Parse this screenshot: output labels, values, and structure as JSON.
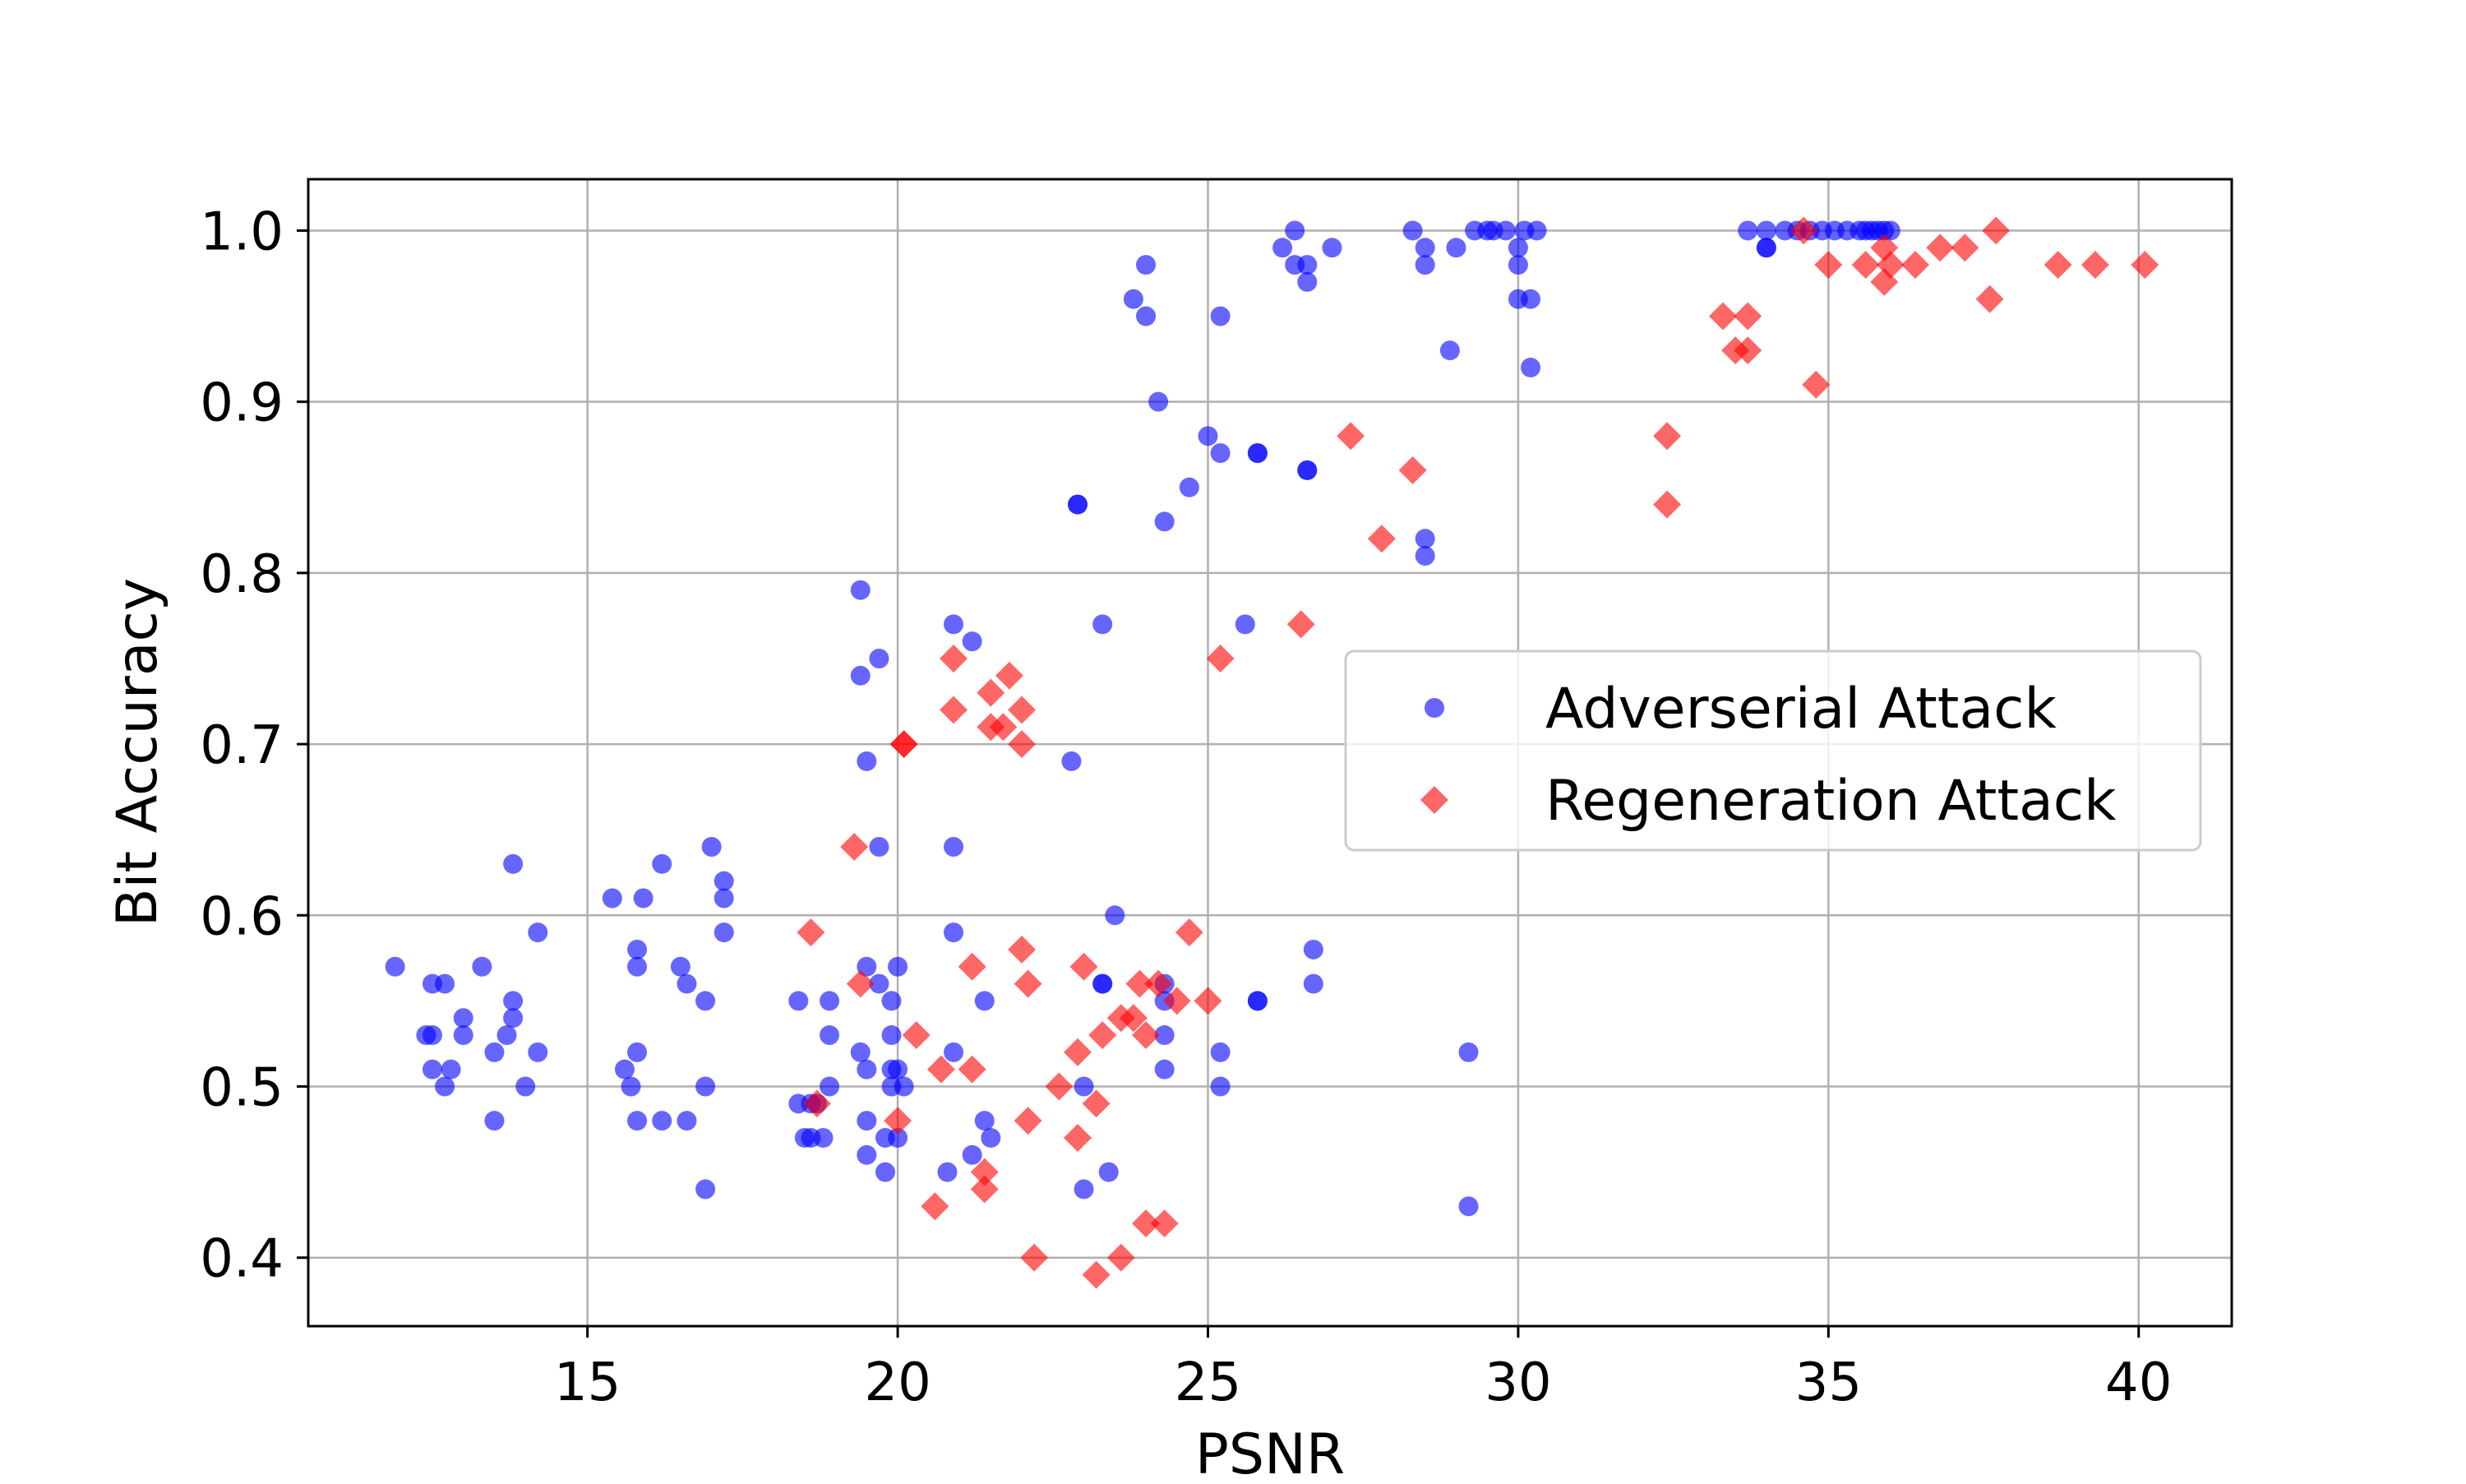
{
  "chart_data": {
    "type": "scatter",
    "xlabel": "PSNR",
    "ylabel": "Bit Accuracy",
    "xlim": [
      10.5,
      41.5
    ],
    "ylim": [
      0.36,
      1.03
    ],
    "xticks": [
      15,
      20,
      25,
      30,
      35,
      40
    ],
    "yticks": [
      0.4,
      0.5,
      0.6,
      0.7,
      0.8,
      0.9,
      1.0
    ],
    "xtick_labels": [
      "15",
      "20",
      "25",
      "30",
      "35",
      "40"
    ],
    "ytick_labels": [
      "0.4",
      "0.5",
      "0.6",
      "0.7",
      "0.8",
      "0.9",
      "1.0"
    ],
    "grid": true,
    "legend_position": "center-right",
    "series": [
      {
        "name": "Adverserial Attack",
        "marker": "circle",
        "color": "#0000ff",
        "alpha": 0.6,
        "points": [
          [
            11.9,
            0.57
          ],
          [
            12.4,
            0.53
          ],
          [
            12.5,
            0.53
          ],
          [
            12.5,
            0.51
          ],
          [
            12.5,
            0.56
          ],
          [
            12.7,
            0.5
          ],
          [
            12.7,
            0.56
          ],
          [
            12.8,
            0.51
          ],
          [
            13.0,
            0.54
          ],
          [
            13.0,
            0.53
          ],
          [
            13.3,
            0.57
          ],
          [
            13.5,
            0.48
          ],
          [
            13.5,
            0.52
          ],
          [
            13.7,
            0.53
          ],
          [
            13.8,
            0.63
          ],
          [
            13.8,
            0.55
          ],
          [
            13.8,
            0.54
          ],
          [
            14.0,
            0.5
          ],
          [
            14.2,
            0.59
          ],
          [
            14.2,
            0.52
          ],
          [
            15.4,
            0.61
          ],
          [
            15.6,
            0.51
          ],
          [
            15.7,
            0.5
          ],
          [
            15.8,
            0.52
          ],
          [
            15.8,
            0.48
          ],
          [
            15.8,
            0.58
          ],
          [
            15.8,
            0.57
          ],
          [
            15.9,
            0.61
          ],
          [
            16.2,
            0.63
          ],
          [
            16.2,
            0.48
          ],
          [
            16.5,
            0.57
          ],
          [
            16.6,
            0.48
          ],
          [
            16.6,
            0.56
          ],
          [
            16.9,
            0.55
          ],
          [
            16.9,
            0.5
          ],
          [
            16.9,
            0.44
          ],
          [
            17.0,
            0.64
          ],
          [
            17.2,
            0.62
          ],
          [
            17.2,
            0.61
          ],
          [
            17.2,
            0.59
          ],
          [
            18.4,
            0.55
          ],
          [
            18.4,
            0.49
          ],
          [
            18.5,
            0.47
          ],
          [
            18.6,
            0.47
          ],
          [
            18.6,
            0.49
          ],
          [
            18.7,
            0.49
          ],
          [
            18.8,
            0.47
          ],
          [
            18.9,
            0.53
          ],
          [
            18.9,
            0.55
          ],
          [
            18.9,
            0.5
          ],
          [
            19.4,
            0.79
          ],
          [
            19.4,
            0.74
          ],
          [
            19.4,
            0.52
          ],
          [
            19.5,
            0.69
          ],
          [
            19.5,
            0.57
          ],
          [
            19.5,
            0.51
          ],
          [
            19.5,
            0.48
          ],
          [
            19.5,
            0.46
          ],
          [
            19.7,
            0.75
          ],
          [
            19.7,
            0.64
          ],
          [
            19.7,
            0.56
          ],
          [
            19.8,
            0.45
          ],
          [
            19.8,
            0.47
          ],
          [
            19.9,
            0.55
          ],
          [
            19.9,
            0.53
          ],
          [
            19.9,
            0.5
          ],
          [
            19.9,
            0.51
          ],
          [
            20.0,
            0.57
          ],
          [
            20.0,
            0.47
          ],
          [
            20.0,
            0.51
          ],
          [
            20.1,
            0.5
          ],
          [
            20.8,
            0.45
          ],
          [
            20.9,
            0.77
          ],
          [
            20.9,
            0.64
          ],
          [
            20.9,
            0.59
          ],
          [
            20.9,
            0.52
          ],
          [
            21.2,
            0.76
          ],
          [
            21.2,
            0.46
          ],
          [
            21.4,
            0.55
          ],
          [
            21.4,
            0.48
          ],
          [
            21.5,
            0.47
          ],
          [
            22.8,
            0.69
          ],
          [
            22.9,
            0.84
          ],
          [
            22.9,
            0.84
          ],
          [
            23.0,
            0.5
          ],
          [
            23.0,
            0.44
          ],
          [
            23.3,
            0.77
          ],
          [
            23.3,
            0.56
          ],
          [
            23.3,
            0.56
          ],
          [
            23.4,
            0.45
          ],
          [
            23.5,
            0.6
          ],
          [
            23.8,
            0.96
          ],
          [
            24.0,
            0.98
          ],
          [
            24.0,
            0.95
          ],
          [
            24.2,
            0.9
          ],
          [
            24.3,
            0.83
          ],
          [
            24.3,
            0.56
          ],
          [
            24.3,
            0.55
          ],
          [
            24.3,
            0.53
          ],
          [
            24.3,
            0.51
          ],
          [
            24.7,
            0.85
          ],
          [
            25.0,
            0.88
          ],
          [
            25.2,
            0.87
          ],
          [
            25.2,
            0.95
          ],
          [
            25.2,
            0.52
          ],
          [
            25.2,
            0.5
          ],
          [
            25.6,
            0.77
          ],
          [
            25.8,
            0.87
          ],
          [
            25.8,
            0.87
          ],
          [
            25.8,
            0.55
          ],
          [
            25.8,
            0.55
          ],
          [
            26.2,
            0.99
          ],
          [
            26.4,
            1.0
          ],
          [
            26.4,
            0.98
          ],
          [
            26.6,
            0.98
          ],
          [
            26.6,
            0.97
          ],
          [
            26.6,
            0.86
          ],
          [
            26.6,
            0.86
          ],
          [
            26.7,
            0.58
          ],
          [
            26.7,
            0.56
          ],
          [
            27.0,
            0.99
          ],
          [
            28.3,
            1.0
          ],
          [
            28.5,
            0.99
          ],
          [
            28.5,
            0.98
          ],
          [
            28.5,
            0.82
          ],
          [
            28.5,
            0.81
          ],
          [
            28.9,
            0.93
          ],
          [
            29.0,
            0.99
          ],
          [
            29.2,
            0.52
          ],
          [
            29.2,
            0.43
          ],
          [
            29.3,
            1.0
          ],
          [
            29.5,
            1.0
          ],
          [
            29.6,
            1.0
          ],
          [
            29.8,
            1.0
          ],
          [
            30.0,
            0.99
          ],
          [
            30.0,
            0.98
          ],
          [
            30.0,
            0.96
          ],
          [
            30.1,
            1.0
          ],
          [
            30.2,
            0.96
          ],
          [
            30.2,
            0.92
          ],
          [
            30.3,
            1.0
          ],
          [
            33.7,
            1.0
          ],
          [
            34.0,
            1.0
          ],
          [
            34.0,
            0.99
          ],
          [
            34.0,
            0.99
          ],
          [
            34.3,
            1.0
          ],
          [
            34.5,
            1.0
          ],
          [
            34.7,
            1.0
          ],
          [
            34.9,
            1.0
          ],
          [
            35.1,
            1.0
          ],
          [
            35.3,
            1.0
          ],
          [
            35.5,
            1.0
          ],
          [
            35.6,
            1.0
          ],
          [
            35.7,
            1.0
          ],
          [
            35.8,
            1.0
          ],
          [
            35.9,
            1.0
          ],
          [
            36.0,
            1.0
          ]
        ]
      },
      {
        "name": "Regeneration Attack",
        "marker": "diamond",
        "color": "#ff0000",
        "alpha": 0.6,
        "points": [
          [
            18.6,
            0.59
          ],
          [
            18.7,
            0.49
          ],
          [
            19.3,
            0.64
          ],
          [
            19.4,
            0.56
          ],
          [
            20.0,
            0.48
          ],
          [
            20.1,
            0.7
          ],
          [
            20.1,
            0.7
          ],
          [
            20.3,
            0.53
          ],
          [
            20.6,
            0.43
          ],
          [
            20.7,
            0.51
          ],
          [
            20.9,
            0.75
          ],
          [
            20.9,
            0.72
          ],
          [
            21.2,
            0.57
          ],
          [
            21.2,
            0.51
          ],
          [
            21.4,
            0.45
          ],
          [
            21.4,
            0.44
          ],
          [
            21.5,
            0.73
          ],
          [
            21.5,
            0.71
          ],
          [
            21.7,
            0.71
          ],
          [
            21.8,
            0.74
          ],
          [
            22.0,
            0.72
          ],
          [
            22.0,
            0.7
          ],
          [
            22.0,
            0.58
          ],
          [
            22.1,
            0.56
          ],
          [
            22.1,
            0.48
          ],
          [
            22.2,
            0.4
          ],
          [
            22.6,
            0.5
          ],
          [
            22.9,
            0.47
          ],
          [
            22.9,
            0.52
          ],
          [
            23.0,
            0.57
          ],
          [
            23.2,
            0.49
          ],
          [
            23.2,
            0.39
          ],
          [
            23.3,
            0.53
          ],
          [
            23.6,
            0.54
          ],
          [
            23.6,
            0.4
          ],
          [
            23.8,
            0.54
          ],
          [
            23.9,
            0.56
          ],
          [
            24.0,
            0.53
          ],
          [
            24.0,
            0.42
          ],
          [
            24.2,
            0.56
          ],
          [
            24.3,
            0.42
          ],
          [
            24.5,
            0.55
          ],
          [
            24.7,
            0.59
          ],
          [
            25.0,
            0.55
          ],
          [
            25.2,
            0.75
          ],
          [
            26.5,
            0.77
          ],
          [
            27.3,
            0.88
          ],
          [
            27.8,
            0.82
          ],
          [
            28.3,
            0.86
          ],
          [
            32.4,
            0.88
          ],
          [
            32.4,
            0.84
          ],
          [
            33.3,
            0.95
          ],
          [
            33.5,
            0.93
          ],
          [
            33.7,
            0.95
          ],
          [
            33.7,
            0.93
          ],
          [
            34.6,
            1.0
          ],
          [
            34.8,
            0.91
          ],
          [
            35.0,
            0.98
          ],
          [
            35.6,
            0.98
          ],
          [
            35.9,
            0.99
          ],
          [
            35.9,
            0.97
          ],
          [
            36.0,
            0.98
          ],
          [
            36.4,
            0.98
          ],
          [
            36.8,
            0.99
          ],
          [
            37.2,
            0.99
          ],
          [
            37.6,
            0.96
          ],
          [
            37.7,
            1.0
          ],
          [
            38.7,
            0.98
          ],
          [
            39.3,
            0.98
          ],
          [
            40.1,
            0.98
          ]
        ]
      }
    ]
  }
}
